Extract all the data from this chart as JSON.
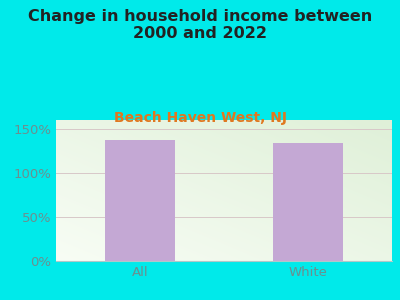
{
  "title": "Change in household income between\n2000 and 2022",
  "subtitle": "Beach Haven West, NJ",
  "categories": [
    "All",
    "White"
  ],
  "values": [
    137,
    134
  ],
  "bar_color": "#c4a8d4",
  "background_color": "#00eaea",
  "chart_bg_start": "#dff0d8",
  "chart_bg_end": "#f8fdf5",
  "title_color": "#222222",
  "subtitle_color": "#e07820",
  "tick_label_color": "#6a9090",
  "xticklabel_color": "#6a9090",
  "grid_color": "#d8c8c8",
  "ylim": [
    0,
    160
  ],
  "yticks": [
    0,
    50,
    100,
    150
  ],
  "ytick_labels": [
    "0%",
    "50%",
    "100%",
    "150%"
  ],
  "title_fontsize": 11.5,
  "subtitle_fontsize": 10,
  "tick_fontsize": 9.5,
  "bar_width": 0.42
}
